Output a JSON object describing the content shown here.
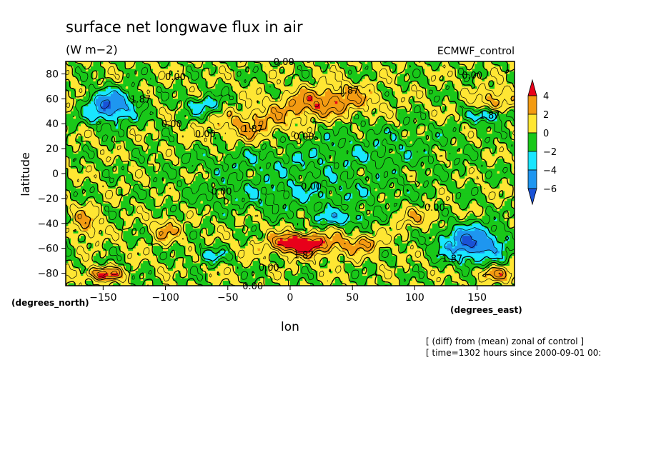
{
  "chart_data": {
    "type": "heatmap",
    "title": "surface net longwave flux in air",
    "units": "(W m−2)",
    "source_label": "ECMWF_control",
    "xlabel": "lon",
    "ylabel": "latitude",
    "x_unit_label": "(degrees_east)",
    "y_unit_label": "(degrees_north)",
    "xlim": [
      -180,
      180
    ],
    "ylim": [
      -90,
      90
    ],
    "x_ticks": [
      -150,
      -100,
      -50,
      0,
      50,
      100,
      150
    ],
    "y_ticks": [
      -80,
      -60,
      -40,
      -20,
      0,
      20,
      40,
      60,
      80
    ],
    "colorbar": {
      "levels": [
        4,
        2,
        0,
        -2,
        -4,
        -6
      ],
      "colors": [
        "#e8001a",
        "#f39b12",
        "#ffe633",
        "#19c819",
        "#19e6ff",
        "#1e96f0",
        "#1a52d6"
      ]
    },
    "contour_labels": [
      {
        "text": "0.00",
        "lon": -5,
        "lat": 90
      },
      {
        "text": "0.00",
        "lon": -92,
        "lat": 78
      },
      {
        "text": "0.00",
        "lon": 146,
        "lat": 79
      },
      {
        "text": "1.87",
        "lon": -120,
        "lat": 60
      },
      {
        "text": "1.87",
        "lon": 47,
        "lat": 67
      },
      {
        "text": "0.00",
        "lon": -95,
        "lat": 40
      },
      {
        "text": "0.00",
        "lon": -68,
        "lat": 32
      },
      {
        "text": "1.87",
        "lon": -30,
        "lat": 36
      },
      {
        "text": "0.00",
        "lon": 11,
        "lat": 30
      },
      {
        "text": "1.87",
        "lon": 160,
        "lat": 47
      },
      {
        "text": "0.00",
        "lon": -55,
        "lat": -14
      },
      {
        "text": "0.00",
        "lon": 17,
        "lat": -10
      },
      {
        "text": "0.00",
        "lon": 116,
        "lat": -27
      },
      {
        "text": "1.87",
        "lon": 11,
        "lat": -65
      },
      {
        "text": "1.87",
        "lon": 130,
        "lat": -68
      },
      {
        "text": "0.00",
        "lon": -17,
        "lat": -75
      },
      {
        "text": "0.00",
        "lon": -30,
        "lat": -90
      }
    ],
    "field_highs": [
      {
        "lon": 5,
        "lat": -55,
        "value": 4.5,
        "rx": 18,
        "ry": 7
      },
      {
        "lon": 20,
        "lat": -57,
        "value": 2.5,
        "rx": 40,
        "ry": 10
      },
      {
        "lon": 60,
        "lat": -55,
        "value": 2.2,
        "rx": 12,
        "ry": 6
      },
      {
        "lon": -30,
        "lat": 40,
        "value": 2.5,
        "rx": 35,
        "ry": 12
      },
      {
        "lon": 40,
        "lat": 60,
        "value": 2.8,
        "rx": 30,
        "ry": 12
      },
      {
        "lon": 10,
        "lat": 55,
        "value": 2.2,
        "rx": 28,
        "ry": 10
      },
      {
        "lon": 165,
        "lat": 60,
        "value": 2.5,
        "rx": 16,
        "ry": 10
      },
      {
        "lon": -165,
        "lat": -40,
        "value": 2.3,
        "rx": 12,
        "ry": 14
      },
      {
        "lon": -100,
        "lat": -45,
        "value": 2.2,
        "rx": 12,
        "ry": 10
      },
      {
        "lon": -150,
        "lat": -80,
        "value": 4.2,
        "rx": 16,
        "ry": 5
      },
      {
        "lon": 165,
        "lat": -80,
        "value": 2.5,
        "rx": 18,
        "ry": 6
      },
      {
        "lon": 100,
        "lat": -35,
        "value": 1.4,
        "rx": 22,
        "ry": 10
      }
    ],
    "field_lows": [
      {
        "lon": -145,
        "lat": 55,
        "value": -6.5,
        "rx": 18,
        "ry": 12
      },
      {
        "lon": 145,
        "lat": -55,
        "value": -6.3,
        "rx": 25,
        "ry": 14
      },
      {
        "lon": 160,
        "lat": 47,
        "value": -3.5,
        "rx": 15,
        "ry": 6
      },
      {
        "lon": -70,
        "lat": 55,
        "value": -3.0,
        "rx": 15,
        "ry": 8
      },
      {
        "lon": 40,
        "lat": -35,
        "value": -2.8,
        "rx": 25,
        "ry": 6
      },
      {
        "lon": -65,
        "lat": -65,
        "value": -2.6,
        "rx": 12,
        "ry": 6
      },
      {
        "lon": 5,
        "lat": -15,
        "value": -1.8,
        "rx": 80,
        "ry": 15
      },
      {
        "lon": 60,
        "lat": 20,
        "value": -1.5,
        "rx": 70,
        "ry": 20
      },
      {
        "lon": -30,
        "lat": 10,
        "value": -1.2,
        "rx": 60,
        "ry": 10
      }
    ]
  },
  "footer": {
    "line1": "[ (diff) from (mean) zonal of control ]",
    "line2": "[ time=1302 hours since 2000-09-01 00:"
  }
}
